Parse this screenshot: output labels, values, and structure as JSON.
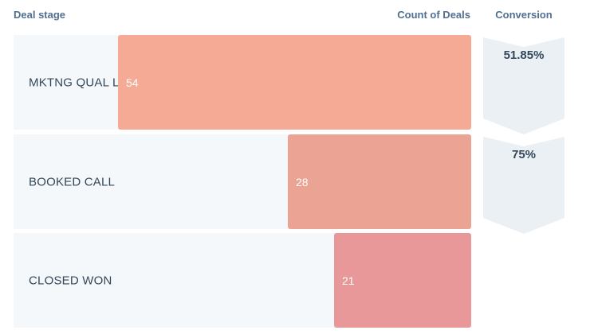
{
  "headers": {
    "stage": "Deal stage",
    "count": "Count of Deals",
    "conversion": "Conversion"
  },
  "colors": {
    "row_background": "#f5f8fa",
    "conversion_chevron": "#eaf0f4",
    "bars": [
      "#f5aa96",
      "#eba394",
      "#e9989a"
    ]
  },
  "chart_data": {
    "type": "bar",
    "orientation": "horizontal",
    "categories": [
      "MKTNG QUAL LEA...",
      "BOOKED CALL",
      "CLOSED WON"
    ],
    "values": [
      54,
      28,
      21
    ],
    "xlim": [
      0,
      70
    ],
    "conversion": [
      "51.85%",
      "75%"
    ],
    "xlabel": "Count of Deals",
    "ylabel": "Deal stage"
  }
}
